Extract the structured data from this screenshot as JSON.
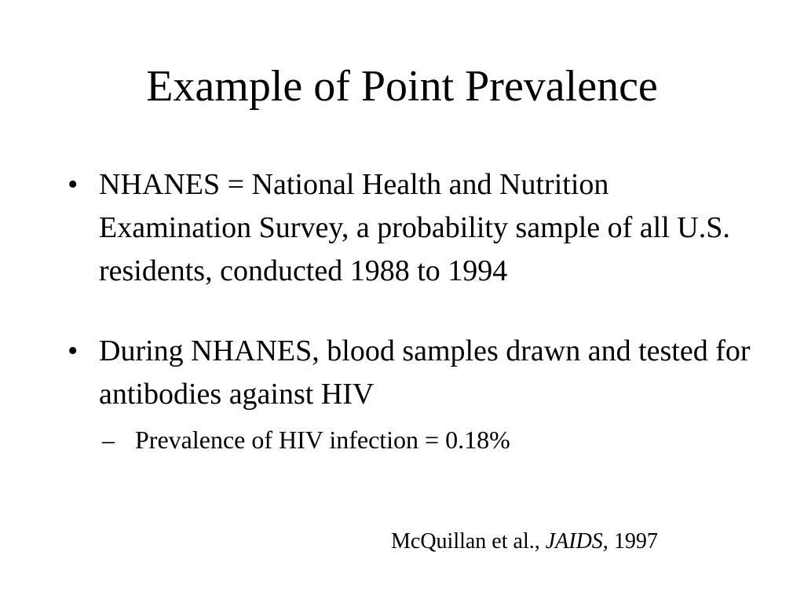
{
  "slide": {
    "title": "Example of Point Prevalence",
    "bullets": [
      {
        "marker": "•",
        "text": "NHANES = National Health and Nutrition Examination Survey, a probability sample of all U.S. residents, conducted 1988 to 1994"
      },
      {
        "marker": "•",
        "text": "During NHANES, blood samples drawn and tested for antibodies against HIV",
        "sub_bullets": [
          {
            "marker": "–",
            "text": "Prevalence of HIV infection = 0.18%"
          }
        ]
      }
    ],
    "citation": {
      "authors": "McQuillan et al., ",
      "journal": "JAIDS,",
      "year": " 1997"
    }
  }
}
